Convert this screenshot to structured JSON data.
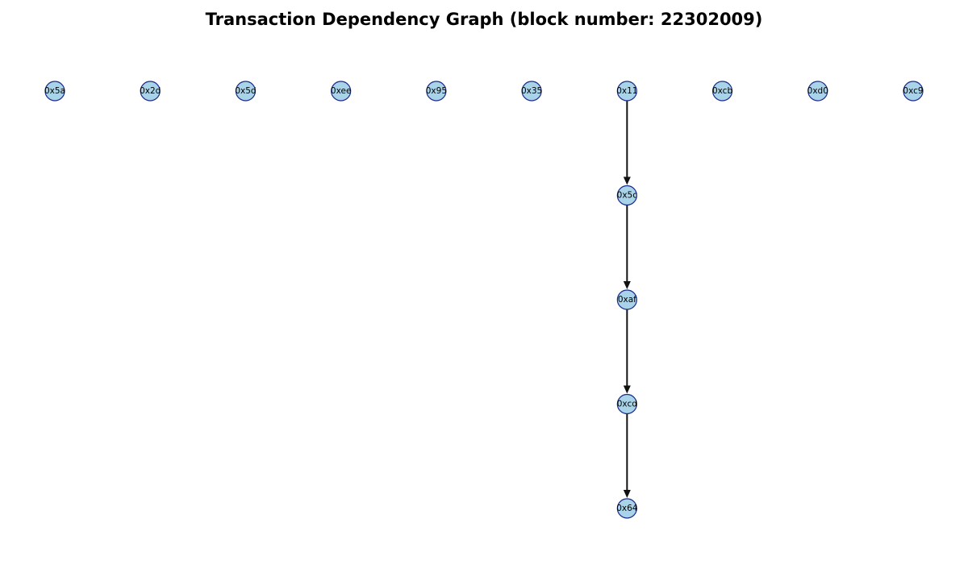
{
  "title": "Transaction Dependency Graph (block number: 22302009)",
  "colors": {
    "node_fill": "#a8d3e8",
    "node_stroke": "#1a2a8a",
    "edge": "#111111"
  },
  "graph": {
    "top_row": [
      "0x5a",
      "0x2d",
      "0x5d",
      "0xee",
      "0x95",
      "0x35",
      "0x11",
      "0xcb",
      "0xd0",
      "0xc9"
    ],
    "chain": [
      "0x11",
      "0x5c",
      "0xaf",
      "0xcd",
      "0x64"
    ],
    "edges": [
      {
        "from": "0x11",
        "to": "0x5c"
      },
      {
        "from": "0x5c",
        "to": "0xaf"
      },
      {
        "from": "0xaf",
        "to": "0xcd"
      },
      {
        "from": "0xcd",
        "to": "0x64"
      }
    ]
  }
}
